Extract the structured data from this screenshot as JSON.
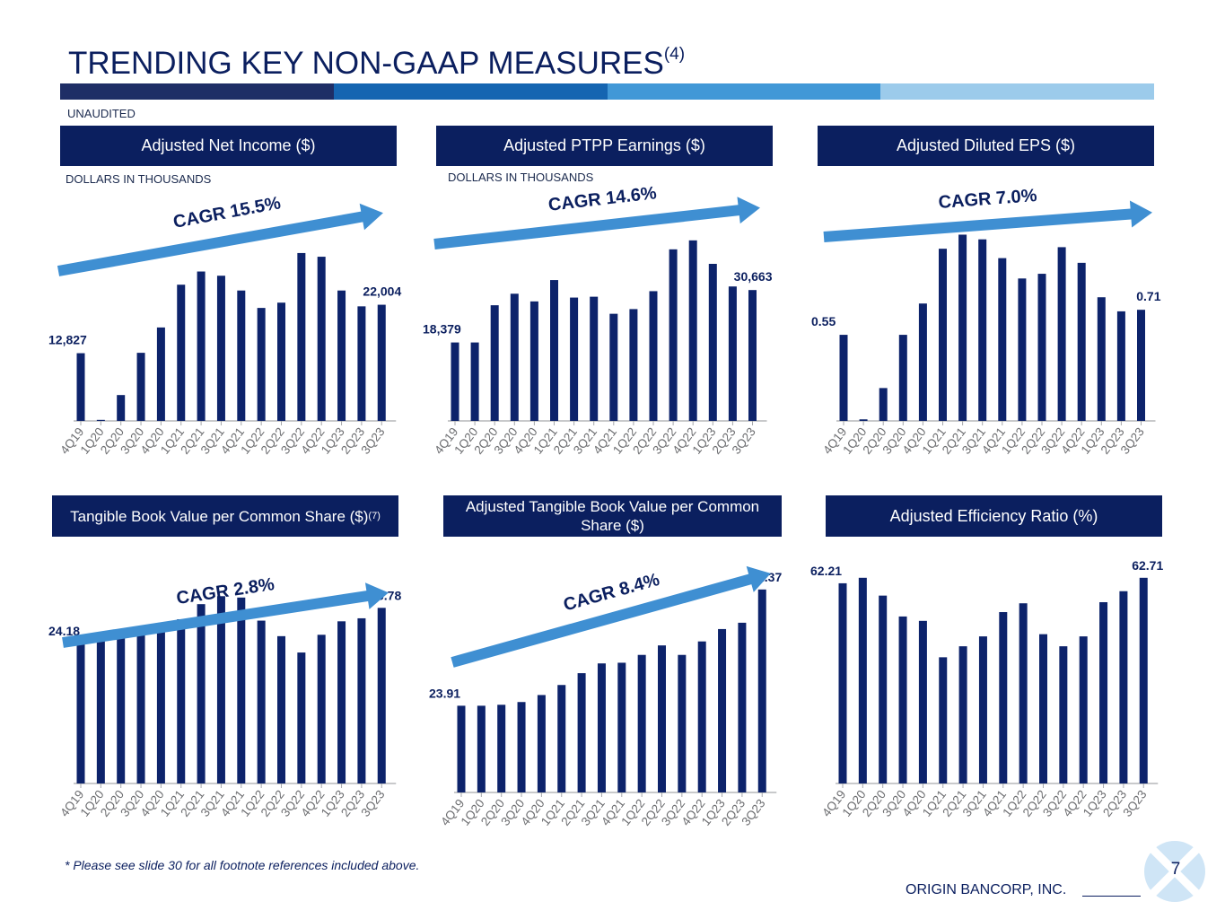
{
  "page": {
    "title": "TRENDING KEY NON-GAAP MEASURES",
    "title_sup": "(4)",
    "unaudited": "UNAUDITED",
    "footnote": "* Please see slide 30 for all footnote references included above.",
    "company": "ORIGIN BANCORP, INC.",
    "page_number": "7",
    "colors": {
      "navy": "#0b1f5f",
      "bar": "#0d236b",
      "arrow": "#3f8fd2",
      "strip": [
        "#1e2e66",
        "#1565b1",
        "#4198d7",
        "#9ccbeb"
      ]
    }
  },
  "chart_data": [
    {
      "id": "net_income",
      "type": "bar",
      "title": "Adjusted Net Income ($)",
      "subtitle": "DOLLARS IN THOUSANDS",
      "categories": [
        "4Q19",
        "1Q20",
        "2Q20",
        "3Q20",
        "4Q20",
        "1Q21",
        "2Q21",
        "3Q21",
        "4Q21",
        "1Q22",
        "2Q22",
        "3Q22",
        "4Q22",
        "1Q23",
        "2Q23",
        "3Q23"
      ],
      "values": [
        12827,
        200,
        4900,
        12900,
        17700,
        25800,
        28300,
        27500,
        24700,
        21400,
        22400,
        31800,
        31100,
        24700,
        21700,
        22004
      ],
      "ylim": [
        0,
        34000
      ],
      "data_labels": [
        {
          "index": 0,
          "text": "12,827"
        },
        {
          "index": 15,
          "text": "22,004"
        }
      ],
      "annotation": "CAGR 15.5%"
    },
    {
      "id": "ptpp",
      "type": "bar",
      "title": "Adjusted PTPP Earnings ($)",
      "subtitle": "DOLLARS IN THOUSANDS",
      "categories": [
        "4Q19",
        "1Q20",
        "2Q20",
        "3Q20",
        "4Q20",
        "1Q21",
        "2Q21",
        "3Q21",
        "4Q21",
        "1Q22",
        "2Q22",
        "3Q22",
        "4Q22",
        "1Q23",
        "2Q23",
        "3Q23"
      ],
      "values": [
        18379,
        18379,
        27100,
        29800,
        28000,
        33000,
        28900,
        29100,
        25100,
        26200,
        30400,
        40200,
        42300,
        36800,
        31500,
        30663
      ],
      "ylim": [
        0,
        45000
      ],
      "data_labels": [
        {
          "index": 0,
          "text": "18,379"
        },
        {
          "index": 15,
          "text": "30,663"
        }
      ],
      "annotation": "CAGR 14.6%"
    },
    {
      "id": "eps",
      "type": "bar",
      "title": "Adjusted Diluted EPS ($)",
      "subtitle": "",
      "categories": [
        "4Q19",
        "1Q20",
        "2Q20",
        "3Q20",
        "4Q20",
        "1Q21",
        "2Q21",
        "3Q21",
        "4Q21",
        "1Q22",
        "2Q22",
        "3Q22",
        "4Q22",
        "1Q23",
        "2Q23",
        "3Q23"
      ],
      "values": [
        0.55,
        0.01,
        0.21,
        0.55,
        0.75,
        1.1,
        1.19,
        1.16,
        1.04,
        0.91,
        0.94,
        1.11,
        1.01,
        0.79,
        0.7,
        0.71
      ],
      "ylim": [
        0,
        1.25
      ],
      "data_labels": [
        {
          "index": 0,
          "text": "0.55"
        },
        {
          "index": 15,
          "text": "0.71"
        }
      ],
      "annotation": "CAGR 7.0%"
    },
    {
      "id": "tbv",
      "type": "bar",
      "title": "Tangible Book Value per Common Share ($)",
      "title_sup": "(7)",
      "subtitle": "",
      "categories": [
        "4Q19",
        "1Q20",
        "2Q20",
        "3Q20",
        "4Q20",
        "1Q21",
        "2Q21",
        "3Q21",
        "4Q21",
        "1Q22",
        "2Q22",
        "3Q22",
        "4Q22",
        "1Q23",
        "2Q23",
        "3Q23"
      ],
      "values": [
        24.18,
        24.45,
        24.72,
        24.98,
        25.65,
        25.95,
        27.05,
        27.63,
        27.53,
        25.85,
        24.72,
        23.53,
        24.82,
        25.8,
        26.02,
        26.78
      ],
      "ylim": [
        14.0,
        30.0
      ],
      "data_labels": [
        {
          "index": 0,
          "text": "24.18"
        },
        {
          "index": 15,
          "text": "26.78"
        }
      ],
      "annotation": "CAGR 2.8%"
    },
    {
      "id": "adj_tbv",
      "type": "bar",
      "title": "Adjusted Tangible Book Value per Common Share ($)",
      "subtitle": "",
      "categories": [
        "4Q19",
        "1Q20",
        "2Q20",
        "3Q20",
        "4Q20",
        "1Q21",
        "2Q21",
        "3Q21",
        "4Q21",
        "1Q22",
        "2Q22",
        "3Q22",
        "4Q22",
        "1Q23",
        "2Q23",
        "3Q23"
      ],
      "values": [
        23.91,
        23.91,
        23.98,
        24.18,
        24.69,
        25.42,
        26.28,
        26.99,
        27.04,
        27.61,
        28.3,
        27.61,
        28.59,
        29.49,
        29.95,
        32.37
      ],
      "ylim": [
        17.6,
        33.6
      ],
      "data_labels": [
        {
          "index": 0,
          "text": "23.91"
        },
        {
          "index": 15,
          "text": "32.37"
        }
      ],
      "annotation": "CAGR 8.4%"
    },
    {
      "id": "efficiency",
      "type": "bar",
      "title": "Adjusted Efficiency Ratio (%)",
      "subtitle": "",
      "categories": [
        "4Q19",
        "1Q20",
        "2Q20",
        "3Q20",
        "4Q20",
        "1Q21",
        "2Q21",
        "3Q21",
        "4Q21",
        "1Q22",
        "2Q22",
        "3Q22",
        "4Q22",
        "1Q23",
        "2Q23",
        "3Q23"
      ],
      "values": [
        62.21,
        62.71,
        61.09,
        59.19,
        58.79,
        55.48,
        56.48,
        57.38,
        59.59,
        60.39,
        57.58,
        56.48,
        57.38,
        60.49,
        61.49,
        62.71
      ],
      "ylim": [
        44.0,
        64.0
      ],
      "data_labels": [
        {
          "index": 0,
          "text": "62.21"
        },
        {
          "index": 15,
          "text": "62.71"
        }
      ],
      "annotation": ""
    }
  ]
}
